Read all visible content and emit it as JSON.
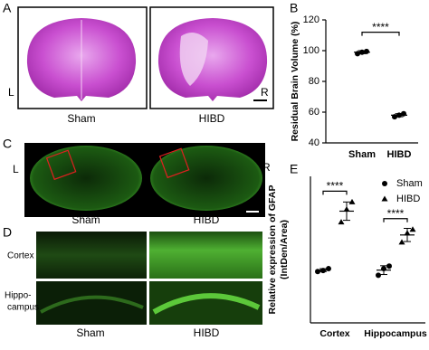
{
  "panels": {
    "A": {
      "label": "A",
      "left": "L",
      "right": "R",
      "images": [
        "Sham",
        "HIBD"
      ]
    },
    "C": {
      "label": "C",
      "left": "L",
      "right": "R",
      "images": [
        "Sham",
        "HIBD"
      ]
    },
    "D": {
      "label": "D",
      "rows": [
        "Cortex",
        "Hippo-",
        "campus"
      ],
      "images": [
        "Sham",
        "HIBD"
      ]
    }
  },
  "chart_data": [
    {
      "type": "dotplot",
      "panel": "B",
      "ylabel": "Residual Brain Volume (%)",
      "categories": [
        "Sham",
        "HIBD"
      ],
      "values": [
        [
          98,
          99,
          99.5
        ],
        [
          57,
          58,
          59
        ]
      ],
      "means": [
        99,
        58
      ],
      "errors": [
        1,
        1
      ],
      "ylim": [
        40,
        120
      ],
      "yticks": [
        40,
        60,
        80,
        100,
        120
      ],
      "annotations": [
        "****"
      ],
      "color": "#000000"
    },
    {
      "type": "grouped-dotplot",
      "panel": "E",
      "ylabel": [
        "Relative expression of GFAP",
        "(IntDen/Area)"
      ],
      "categories": [
        "Cortex",
        "Hippocampus"
      ],
      "series": [
        {
          "name": "Sham",
          "marker": "circle",
          "color": "#000000",
          "values": [
            [
              14,
              14.3,
              14.8
            ],
            [
              13,
              14.8,
              15.5
            ]
          ],
          "means": [
            14.4,
            14.4
          ],
          "errors": [
            0.4,
            1.2
          ]
        },
        {
          "name": "HIBD",
          "marker": "triangle",
          "color": "#000000",
          "values": [
            [
              27.5,
              31,
              33
            ],
            [
              22,
              24.5,
              25.5
            ]
          ],
          "means": [
            30.5,
            24
          ],
          "errors": [
            2.5,
            1.8
          ]
        }
      ],
      "ylim": [
        0,
        40
      ],
      "annotations": [
        "****",
        "****"
      ],
      "legend": "top-right"
    }
  ]
}
